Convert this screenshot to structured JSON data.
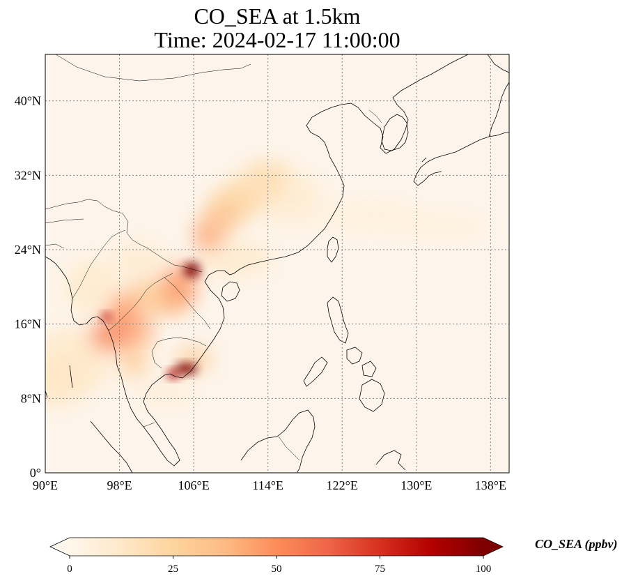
{
  "title": {
    "line1": "CO_SEA at 1.5km",
    "line2": "Time: 2024-02-17 11:00:00"
  },
  "map": {
    "lon_range": [
      90,
      140
    ],
    "lat_range": [
      0,
      45
    ],
    "lon_ticks": [
      {
        "value": 90,
        "label": "90°E"
      },
      {
        "value": 98,
        "label": "98°E"
      },
      {
        "value": 106,
        "label": "106°E"
      },
      {
        "value": 114,
        "label": "114°E"
      },
      {
        "value": 122,
        "label": "122°E"
      },
      {
        "value": 130,
        "label": "130°E"
      },
      {
        "value": 138,
        "label": "138°E"
      }
    ],
    "lat_ticks": [
      {
        "value": 0,
        "label": "0°"
      },
      {
        "value": 8,
        "label": "8°N"
      },
      {
        "value": 16,
        "label": "16°N"
      },
      {
        "value": 24,
        "label": "24°N"
      },
      {
        "value": 32,
        "label": "32°N"
      },
      {
        "value": 40,
        "label": "40°N"
      }
    ],
    "gridlines": true,
    "background_color": "#fdf5eb",
    "coastline_color": "#000000",
    "grid_color": "#808080"
  },
  "plumes": [
    {
      "lon": 105.8,
      "lat": 21.8,
      "rlon": 0.9,
      "rlat": 0.8,
      "value": 100
    },
    {
      "lon": 105.2,
      "lat": 11.2,
      "rlon": 1.2,
      "rlat": 0.6,
      "value": 100
    },
    {
      "lon": 103.8,
      "lat": 10.6,
      "rlon": 0.7,
      "rlat": 0.5,
      "value": 88
    },
    {
      "lon": 96.6,
      "lat": 16.8,
      "rlon": 0.5,
      "rlat": 0.4,
      "value": 88
    },
    {
      "lon": 96.8,
      "lat": 14.8,
      "rlon": 1.8,
      "rlat": 1.6,
      "value": 55
    },
    {
      "lon": 98.5,
      "lat": 16.5,
      "rlon": 1.8,
      "rlat": 2.6,
      "value": 50
    },
    {
      "lon": 100.5,
      "lat": 15.2,
      "rlon": 1.2,
      "rlat": 1.0,
      "value": 45
    },
    {
      "lon": 104.5,
      "lat": 20.2,
      "rlon": 1.8,
      "rlat": 2.2,
      "value": 50
    },
    {
      "lon": 103.5,
      "lat": 18.5,
      "rlon": 2.0,
      "rlat": 1.6,
      "value": 35
    },
    {
      "lon": 101.0,
      "lat": 18.8,
      "rlon": 2.4,
      "rlat": 2.2,
      "value": 30
    },
    {
      "lon": 99.5,
      "lat": 12.5,
      "rlon": 1.6,
      "rlat": 2.4,
      "value": 30
    },
    {
      "lon": 106.0,
      "lat": 12.2,
      "rlon": 2.0,
      "rlat": 1.4,
      "value": 30
    },
    {
      "lon": 107.5,
      "lat": 25.5,
      "rlon": 1.6,
      "rlat": 1.6,
      "value": 45
    },
    {
      "lon": 109.0,
      "lat": 27.5,
      "rlon": 2.0,
      "rlat": 1.8,
      "value": 35
    },
    {
      "lon": 110.5,
      "lat": 29.0,
      "rlon": 2.6,
      "rlat": 1.8,
      "value": 25
    },
    {
      "lon": 112.5,
      "lat": 30.5,
      "rlon": 3.0,
      "rlat": 2.0,
      "value": 18
    },
    {
      "lon": 114.0,
      "lat": 32.0,
      "rlon": 2.4,
      "rlat": 1.6,
      "value": 20
    },
    {
      "lon": 116.5,
      "lat": 29.5,
      "rlon": 3.5,
      "rlat": 3.0,
      "value": 10
    },
    {
      "lon": 110.5,
      "lat": 23.0,
      "rlon": 4.0,
      "rlat": 2.0,
      "value": 12
    },
    {
      "lon": 93.0,
      "lat": 12.0,
      "rlon": 4.0,
      "rlat": 3.5,
      "value": 14
    },
    {
      "lon": 91.0,
      "lat": 9.5,
      "rlon": 3.0,
      "rlat": 2.5,
      "value": 14
    },
    {
      "lon": 95.0,
      "lat": 20.0,
      "rlon": 3.0,
      "rlat": 3.0,
      "value": 12
    },
    {
      "lon": 100.0,
      "lat": 23.0,
      "rlon": 3.0,
      "rlat": 2.0,
      "value": 10
    },
    {
      "lon": 125.0,
      "lat": 27.5,
      "rlon": 6.0,
      "rlat": 1.6,
      "value": 7
    },
    {
      "lon": 133.0,
      "lat": 26.5,
      "rlon": 5.0,
      "rlat": 1.5,
      "value": 6
    },
    {
      "lon": 103.0,
      "lat": 8.5,
      "rlon": 3.0,
      "rlat": 1.5,
      "value": 8
    }
  ],
  "colorbar": {
    "label": "CO_SEA (ppbv)",
    "min": 0,
    "max": 100,
    "extend": "both",
    "ticks": [
      {
        "value": 0,
        "label": "0"
      },
      {
        "value": 25,
        "label": "25"
      },
      {
        "value": 50,
        "label": "50"
      },
      {
        "value": 75,
        "label": "75"
      },
      {
        "value": 100,
        "label": "100"
      }
    ],
    "colormap": [
      "#fff5eb",
      "#fee6ce",
      "#fdd0a2",
      "#fdae6b",
      "#fd8d3c",
      "#f16913",
      "#d94801",
      "#a63603",
      "#7f2704"
    ],
    "colormap_name": "OrRd-like",
    "stops_display": [
      "#fff7ec",
      "#fee8c8",
      "#fdd49e",
      "#fdbb84",
      "#fc8d59",
      "#ef6548",
      "#d7301f",
      "#b30000",
      "#7f0000"
    ]
  }
}
